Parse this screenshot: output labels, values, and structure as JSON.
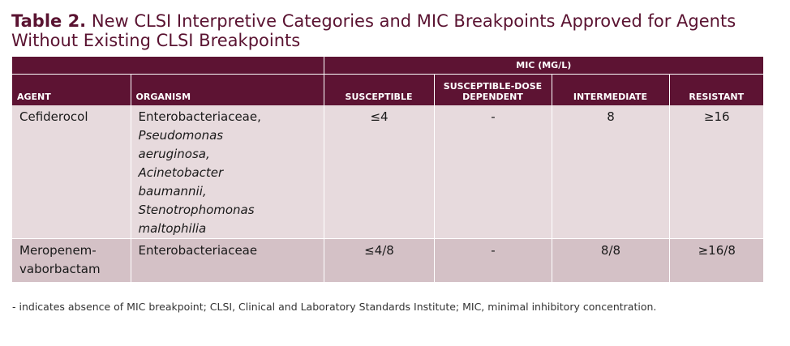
{
  "title": {
    "lead": "Table 2.",
    "text": "New CLSI Interpretive Categories and MIC Breakpoints Approved for Agents Without Existing CLSI Breakpoints"
  },
  "table": {
    "group_header": "MIC (MG/L)",
    "columns": [
      "AGENT",
      "ORGANISM",
      "SUSCEPTIBLE",
      "SUSCEPTIBLE-DOSE DEPENDENT",
      "INTERMEDIATE",
      "RESISTANT"
    ],
    "rows": [
      {
        "agent": [
          "Cefiderocol"
        ],
        "organism": [
          {
            "text": "Enterobacteriaceae,",
            "italic": false
          },
          {
            "text": "Pseudomonas",
            "italic": true
          },
          {
            "text": "aeruginosa,",
            "italic": true
          },
          {
            "text": "Acinetobacter",
            "italic": true
          },
          {
            "text": "baumannii,",
            "italic": true
          },
          {
            "text": "Stenotrophomonas",
            "italic": true
          },
          {
            "text": "maltophilia",
            "italic": true
          }
        ],
        "susceptible": "≤4",
        "sdd": "-",
        "intermediate": "8",
        "resistant": "≥16"
      },
      {
        "agent": [
          "Meropenem-",
          "vaborbactam"
        ],
        "organism": [
          {
            "text": "Enterobacteriaceae",
            "italic": false
          }
        ],
        "susceptible": "≤4/8",
        "sdd": "-",
        "intermediate": "8/8",
        "resistant": "≥16/8"
      }
    ]
  },
  "footnote": "- indicates absence of MIC breakpoint; CLSI, Clinical and Laboratory Standards Institute; MIC, minimal inhibitory concentration."
}
